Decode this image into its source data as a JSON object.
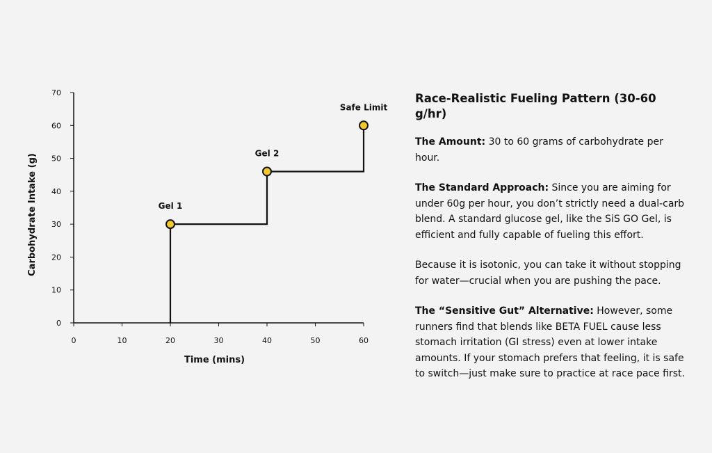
{
  "chart_data": {
    "type": "line",
    "step": "post",
    "xlabel": "Time (mins)",
    "ylabel": "Carbohydrate Intake (g)",
    "xlim": [
      0,
      60
    ],
    "ylim": [
      0,
      70
    ],
    "xticks": [
      0,
      10,
      20,
      30,
      40,
      50,
      60
    ],
    "yticks": [
      0,
      10,
      20,
      30,
      40,
      50,
      60,
      70
    ],
    "grid": false,
    "line_color": "#111111",
    "marker_color": "#f2c830",
    "series": [
      {
        "x": [
          20,
          20,
          40,
          40,
          60,
          60
        ],
        "y": [
          0,
          30,
          30,
          46,
          46,
          60
        ]
      }
    ],
    "points": [
      {
        "label": "Gel 1",
        "x": 20,
        "y": 30
      },
      {
        "label": "Gel 2",
        "x": 40,
        "y": 46
      },
      {
        "label": "Safe Limit",
        "x": 60,
        "y": 60
      }
    ]
  },
  "panel": {
    "title": "Race-Realistic Fueling Pattern (30-60 g/hr)",
    "amount_label": "The Amount:",
    "amount_text": " 30 to 60 grams of carbohydrate per hour.",
    "standard_label": "The Standard Approach:",
    "standard_text": " Since you are aiming for under 60g per hour, you don’t strictly need a dual-carb blend. A standard glucose gel, like the SiS GO Gel, is efficient and fully capable of fueling this effort.",
    "isotonic_text": "Because it is isotonic, you can take it without stopping for water—crucial when you are pushing the pace.",
    "gut_label": "The “Sensitive Gut” Alternative:",
    "gut_text": " However, some runners find that blends like BETA FUEL cause less stomach irritation (GI stress) even at lower intake amounts. If your stomach prefers that feeling, it is safe to switch—just make sure to practice at race pace first."
  }
}
